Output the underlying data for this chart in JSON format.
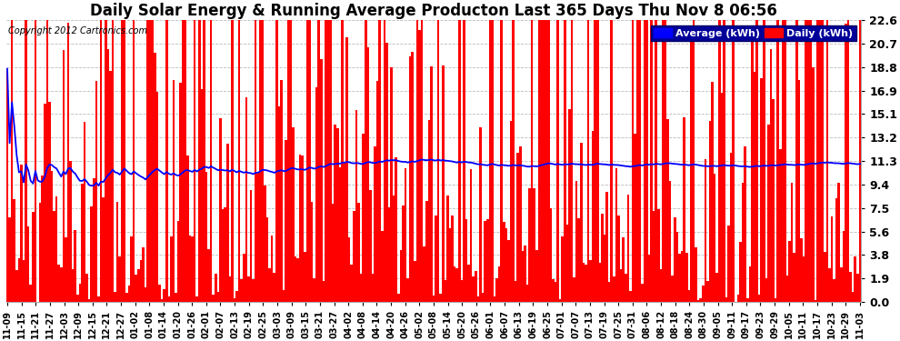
{
  "title": "Daily Solar Energy & Running Average Producton Last 365 Days Thu Nov 8 06:56",
  "copyright": "Copyright 2012 Cartronics.com",
  "legend_avg": "Average (kWh)",
  "legend_daily": "Daily (kWh)",
  "yticks": [
    0.0,
    1.9,
    3.8,
    5.6,
    7.5,
    9.4,
    11.3,
    13.2,
    15.1,
    16.9,
    18.8,
    20.7,
    22.6
  ],
  "ymax": 22.6,
  "ymin": 0.0,
  "bar_color": "#ff0000",
  "avg_line_color": "#0000ff",
  "bg_color": "#ffffff",
  "grid_color": "#bbbbbb",
  "title_fontsize": 12,
  "tick_fontsize": 9,
  "n_bars": 365,
  "xtick_labels": [
    "11-09",
    "11-15",
    "11-21",
    "11-27",
    "12-03",
    "12-09",
    "12-15",
    "12-21",
    "12-27",
    "01-02",
    "01-08",
    "01-14",
    "01-20",
    "01-26",
    "02-01",
    "02-07",
    "02-13",
    "02-19",
    "02-25",
    "03-03",
    "03-09",
    "03-15",
    "03-21",
    "03-27",
    "04-02",
    "04-08",
    "04-14",
    "04-20",
    "04-26",
    "05-02",
    "05-08",
    "05-14",
    "05-20",
    "05-26",
    "06-01",
    "06-07",
    "06-13",
    "06-19",
    "06-25",
    "07-01",
    "07-07",
    "07-13",
    "07-19",
    "07-25",
    "07-31",
    "08-06",
    "08-12",
    "08-18",
    "08-24",
    "08-30",
    "09-05",
    "09-11",
    "09-17",
    "09-23",
    "09-29",
    "10-05",
    "10-11",
    "10-17",
    "10-23",
    "10-29",
    "11-03"
  ]
}
